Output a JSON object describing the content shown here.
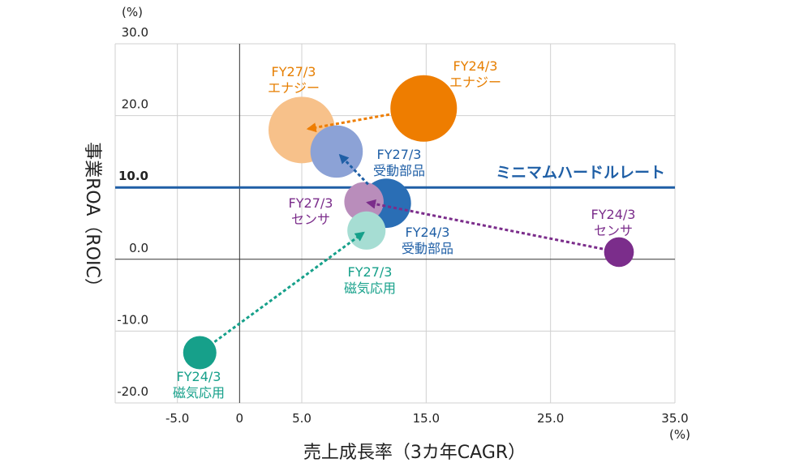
{
  "chart_data": {
    "type": "scatter",
    "xlabel": "売上成長率（3カ年CAGR）",
    "ylabel": "事業ROA（ROIC）",
    "x_unit": "(%)",
    "y_unit": "(%)",
    "xlim": [
      -10,
      35
    ],
    "ylim": [
      -20,
      30
    ],
    "x_ticks": [
      {
        "value": -5,
        "label": "-5.0"
      },
      {
        "value": 0,
        "label": "0"
      },
      {
        "value": 5,
        "label": "5.0"
      },
      {
        "value": 15,
        "label": "15.0"
      },
      {
        "value": 25,
        "label": "25.0"
      },
      {
        "value": 35,
        "label": "35.0"
      }
    ],
    "y_ticks": [
      {
        "value": 30,
        "label": "30.0",
        "bold": false
      },
      {
        "value": 20,
        "label": "20.0",
        "bold": false
      },
      {
        "value": 10,
        "label": "10.0",
        "bold": true
      },
      {
        "value": 0,
        "label": "0.0",
        "bold": false
      },
      {
        "value": -10,
        "label": "-10.0",
        "bold": false
      },
      {
        "value": -20,
        "label": "-20.0",
        "bold": false
      }
    ],
    "x_grid": [
      -5,
      5,
      15,
      25,
      35
    ],
    "y_grid": [
      30,
      20,
      -10,
      -20
    ],
    "hurdle": {
      "y": 10,
      "label": "ミニマムハードルレート",
      "color": "#1f5fa6"
    },
    "points": [
      {
        "id": "energy-fy24",
        "x": 14.8,
        "y": 21,
        "size": 1.0,
        "color": "#ee7d00",
        "label": [
          "FY24/3",
          "エナジー"
        ],
        "label_color": "#e67e00"
      },
      {
        "id": "energy-fy27",
        "x": 5,
        "y": 18,
        "size": 1.0,
        "color": "#f7c18a",
        "label": [
          "FY27/3",
          "エナジー"
        ],
        "label_color": "#e67e00"
      },
      {
        "id": "passive-fy24",
        "x": 11.8,
        "y": 7.8,
        "size": 0.55,
        "color": "#2a6eb5",
        "label": [
          "FY24/3",
          "受動部品"
        ],
        "label_color": "#1f5fa6"
      },
      {
        "id": "passive-fy27",
        "x": 7.8,
        "y": 15,
        "size": 0.62,
        "color": "#8ca2d6",
        "label": [
          "FY27/3",
          "受動部品"
        ],
        "label_color": "#1f5fa6"
      },
      {
        "id": "sensor-fy24",
        "x": 30.5,
        "y": 1,
        "size": 0.2,
        "color": "#7b2d8b",
        "label": [
          "FY24/3",
          "センサ"
        ],
        "label_color": "#7b2d8b"
      },
      {
        "id": "sensor-fy27",
        "x": 10,
        "y": 8,
        "size": 0.35,
        "color": "#b98dbb",
        "label": [
          "FY27/3",
          "センサ"
        ],
        "label_color": "#7b2d8b"
      },
      {
        "id": "magnetic-fy24",
        "x": -3.2,
        "y": -13,
        "size": 0.25,
        "color": "#16a08a",
        "label": [
          "FY24/3",
          "磁気応用"
        ],
        "label_color": "#16a08a"
      },
      {
        "id": "magnetic-fy27",
        "x": 10.2,
        "y": 4,
        "size": 0.33,
        "color": "#a6ddd3",
        "label": [
          "FY27/3",
          "磁気応用"
        ],
        "label_color": "#16a08a"
      }
    ],
    "arrows": [
      {
        "from": "energy-fy24",
        "to": "energy-fy27",
        "color": "#ee7d00"
      },
      {
        "from": "passive-fy24",
        "to": "passive-fy27",
        "color": "#1f5fa6"
      },
      {
        "from": "sensor-fy24",
        "to": "sensor-fy27",
        "color": "#7b2d8b"
      },
      {
        "from": "magnetic-fy24",
        "to": "magnetic-fy27",
        "color": "#16a08a"
      }
    ],
    "colors": {
      "grid": "#d0d0d0",
      "axis": "#333333",
      "text": "#222222"
    }
  }
}
